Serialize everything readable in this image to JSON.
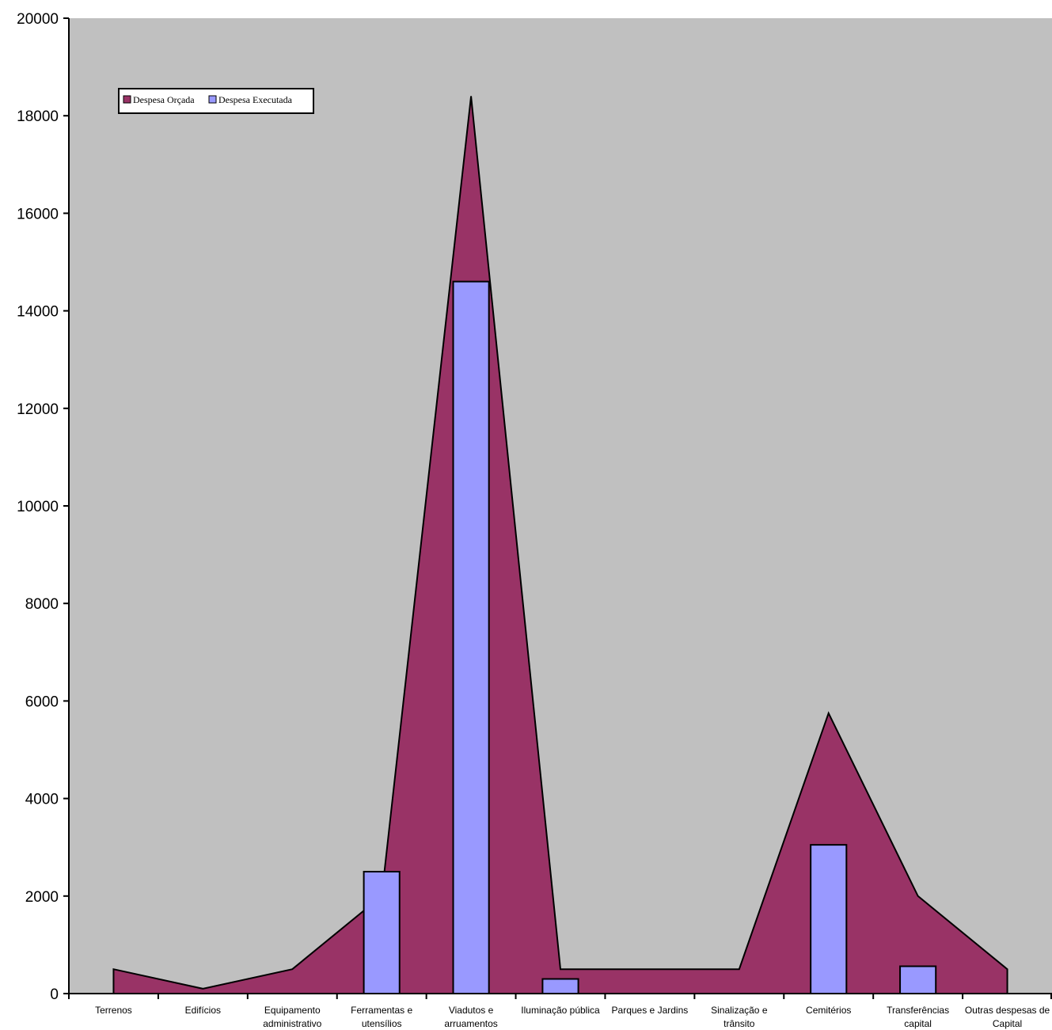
{
  "chart_data": {
    "type": "bar",
    "title": "",
    "xlabel": "",
    "ylabel": "",
    "ylim": [
      0,
      20000
    ],
    "yticks": [
      0,
      2000,
      4000,
      6000,
      8000,
      10000,
      12000,
      14000,
      16000,
      18000,
      20000
    ],
    "categories": [
      [
        "Terrenos"
      ],
      [
        "Edifícios"
      ],
      [
        "Equipamento",
        "administrativo"
      ],
      [
        "Ferramentas e",
        "utensílios"
      ],
      [
        "Viadutos e",
        "arruamentos"
      ],
      [
        "Iluminação pública"
      ],
      [
        "Parques e Jardins"
      ],
      [
        "Sinalização e",
        "trânsito"
      ],
      [
        "Cemitérios"
      ],
      [
        "Transferências",
        "capital"
      ],
      [
        "Outras despesas de",
        "Capital"
      ]
    ],
    "series": [
      {
        "name": "Despesa Orçada",
        "type": "area",
        "color": "#993366",
        "values": [
          500,
          100,
          500,
          2000,
          18400,
          500,
          500,
          500,
          5750,
          2000,
          500
        ]
      },
      {
        "name": "Despesa Executada",
        "type": "bar",
        "color": "#9999ff",
        "values": [
          0,
          0,
          0,
          2500,
          14600,
          300,
          0,
          0,
          3050,
          560,
          0
        ]
      }
    ],
    "grid": false,
    "legend_position": "top-left",
    "plot_background": "#c0c0c0"
  }
}
